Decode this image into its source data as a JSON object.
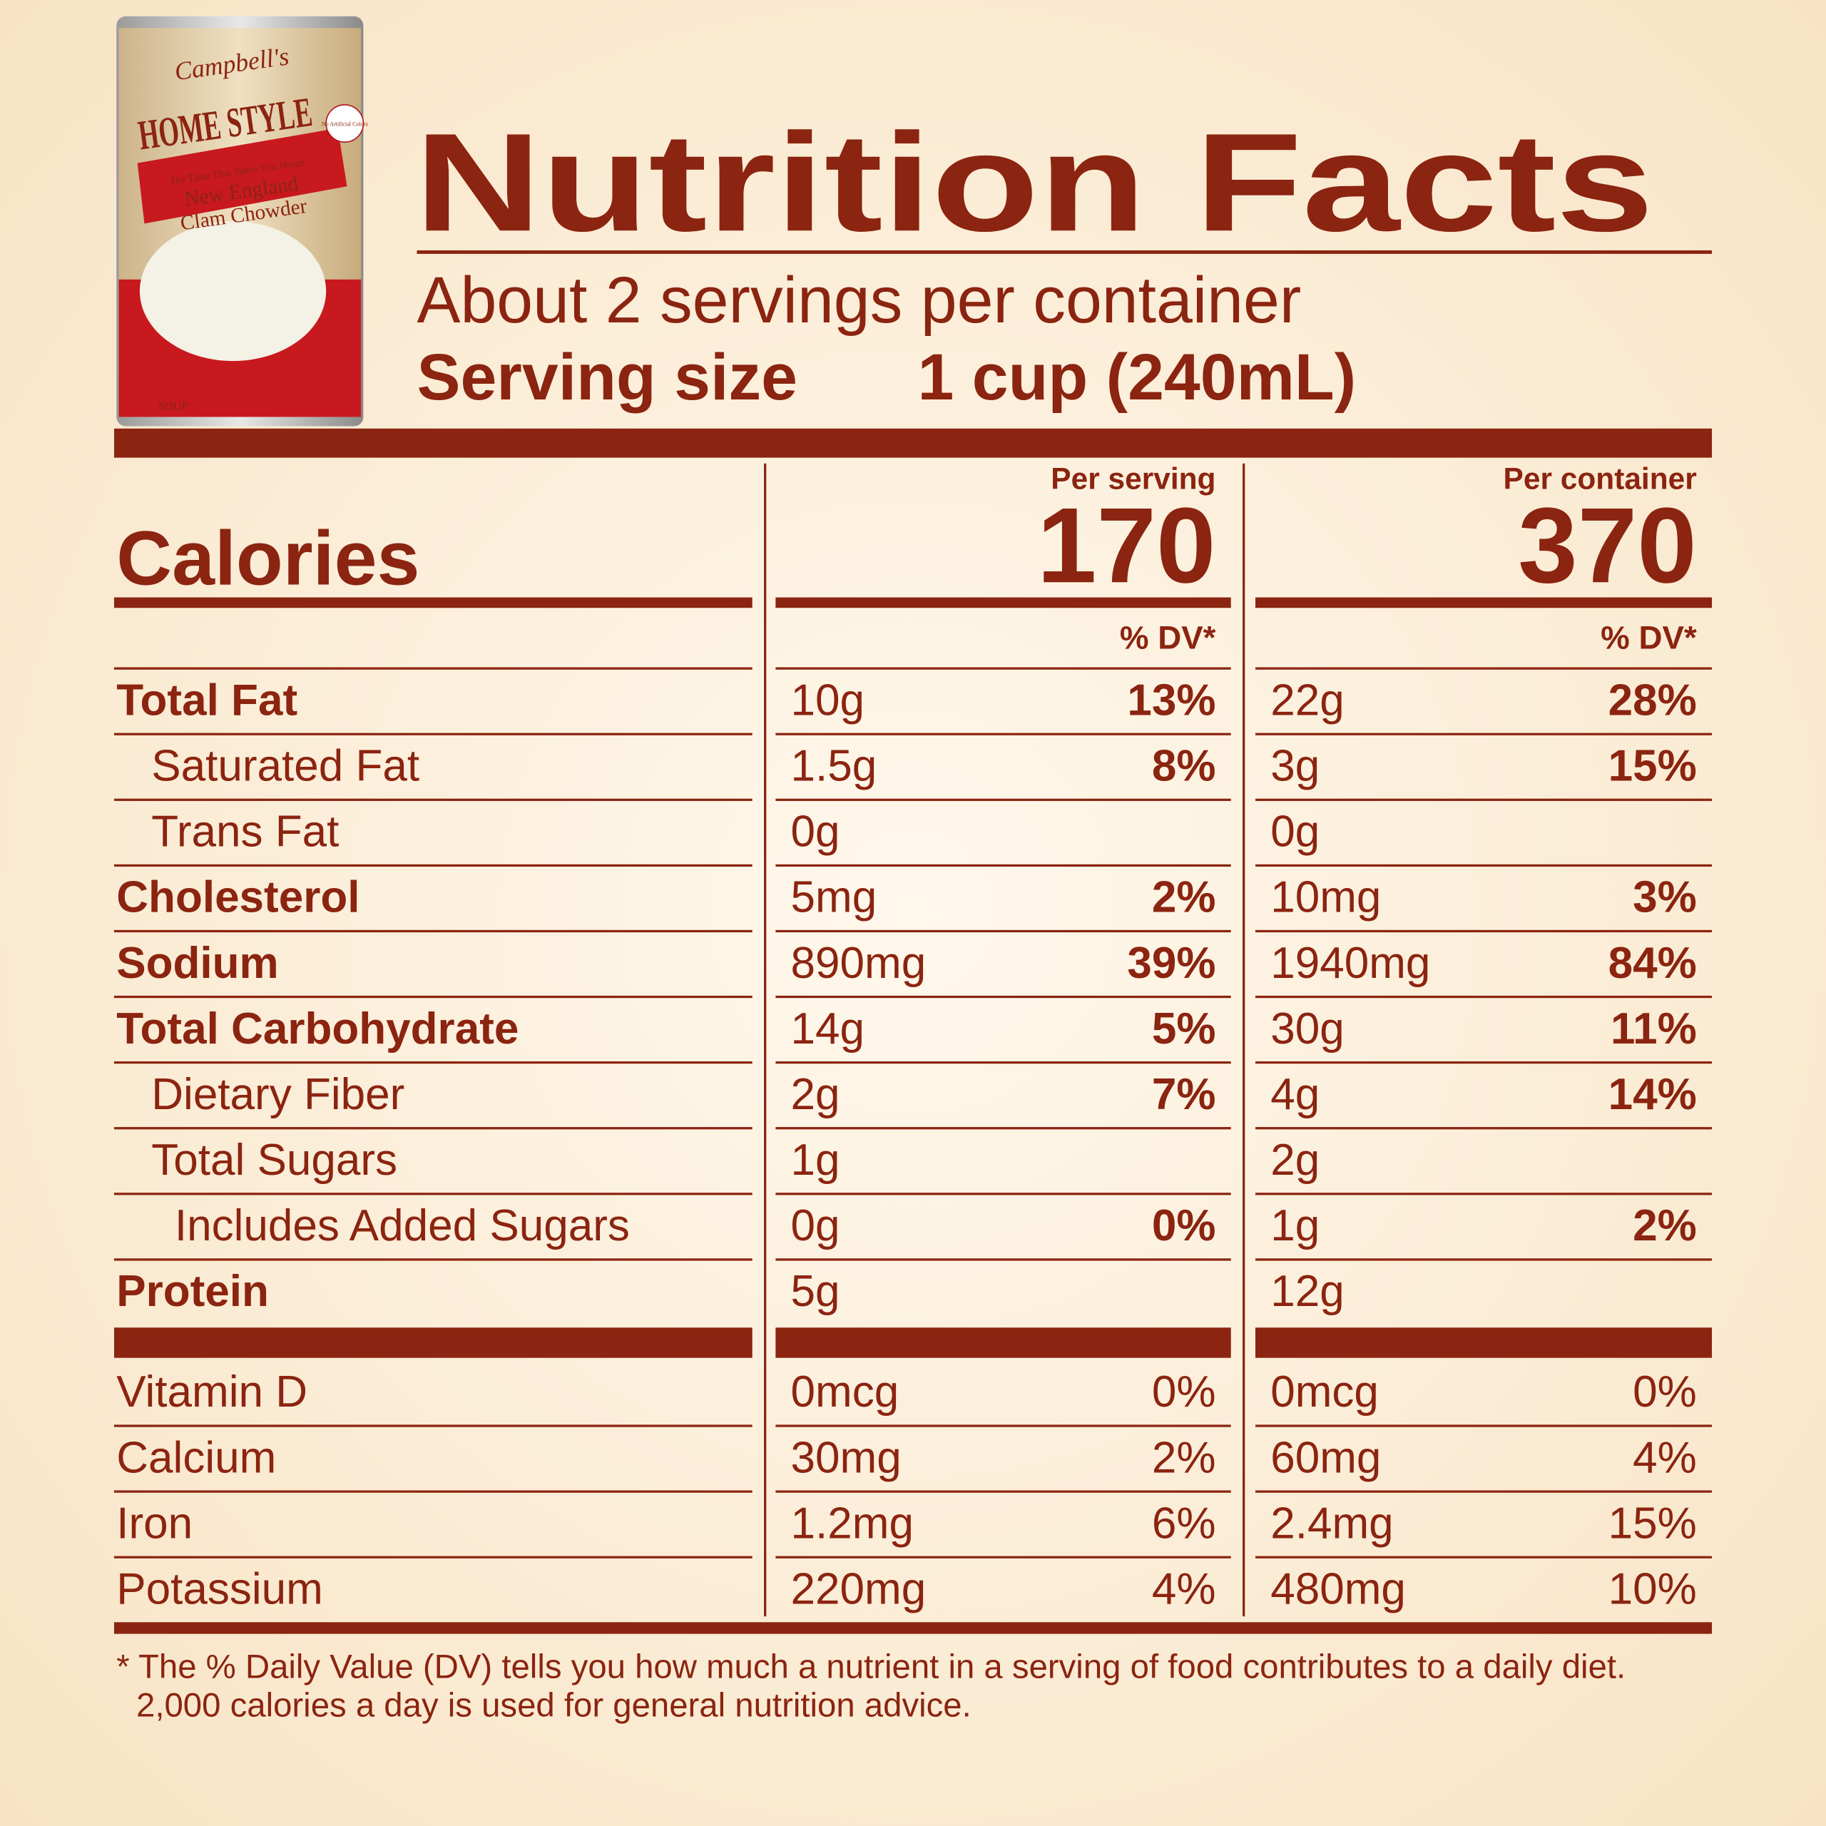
{
  "product": {
    "brand": "Campbell's",
    "line": "HOME STYLE",
    "tagline": "The Taste That Takes You Home.",
    "flavor": [
      "New England",
      "Clam Chowder"
    ],
    "badge": "No Artificial Colors",
    "kind": "SOUP"
  },
  "header": {
    "title": "Nutrition Facts",
    "servings": "About 2 servings per container",
    "serving_size_label": "Serving size",
    "serving_size": "1 cup (240mL)"
  },
  "calories": {
    "label": "Calories",
    "columns": [
      {
        "heading": "Per serving",
        "value": 170,
        "dv_heading": "% DV*"
      },
      {
        "heading": "Per container",
        "value": 370,
        "dv_heading": "% DV*"
      }
    ]
  },
  "nutrients": [
    {
      "name": "Total Fat",
      "serving": [
        "10g",
        "13%"
      ],
      "container": [
        "22g",
        "28%"
      ]
    },
    {
      "name": "Saturated Fat",
      "serving": [
        "1.5g",
        "8%"
      ],
      "container": [
        "3g",
        "15%"
      ]
    },
    {
      "name": "Trans Fat",
      "serving": [
        "0g",
        null
      ],
      "container": [
        "0g",
        null
      ]
    },
    {
      "name": "Cholesterol",
      "serving": [
        "5mg",
        "2%"
      ],
      "container": [
        "10mg",
        "3%"
      ]
    },
    {
      "name": "Sodium",
      "serving": [
        "890mg",
        "39%"
      ],
      "container": [
        "1940mg",
        "84%"
      ]
    },
    {
      "name": "Total Carbohydrate",
      "serving": [
        "14g",
        "5%"
      ],
      "container": [
        "30g",
        "11%"
      ]
    },
    {
      "name": "Dietary Fiber",
      "serving": [
        "2g",
        "7%"
      ],
      "container": [
        "4g",
        "14%"
      ]
    },
    {
      "name": "Total Sugars",
      "serving": [
        "1g",
        null
      ],
      "container": [
        "2g",
        null
      ]
    },
    {
      "name": "Includes Added Sugars",
      "serving": [
        "0g",
        "0%"
      ],
      "container": [
        "1g",
        "2%"
      ]
    },
    {
      "name": "Protein",
      "serving": [
        "5g",
        null
      ],
      "container": [
        "12g",
        null
      ]
    }
  ],
  "vitamins": [
    {
      "name": "Vitamin D",
      "serving": [
        "0mcg",
        "0%"
      ],
      "container": [
        "0mcg",
        "0%"
      ]
    },
    {
      "name": "Calcium",
      "serving": [
        "30mg",
        "2%"
      ],
      "container": [
        "60mg",
        "4%"
      ]
    },
    {
      "name": "Iron",
      "serving": [
        "1.2mg",
        "6%"
      ],
      "container": [
        "2.4mg",
        "15%"
      ]
    },
    {
      "name": "Potassium",
      "serving": [
        "220mg",
        "4%"
      ],
      "container": [
        "480mg",
        "10%"
      ]
    }
  ],
  "footnote": [
    "* The % Daily Value (DV) tells you how much a nutrient in a serving of food contributes to a daily diet.",
    "2,000 calories a day is used for general nutrition advice."
  ]
}
